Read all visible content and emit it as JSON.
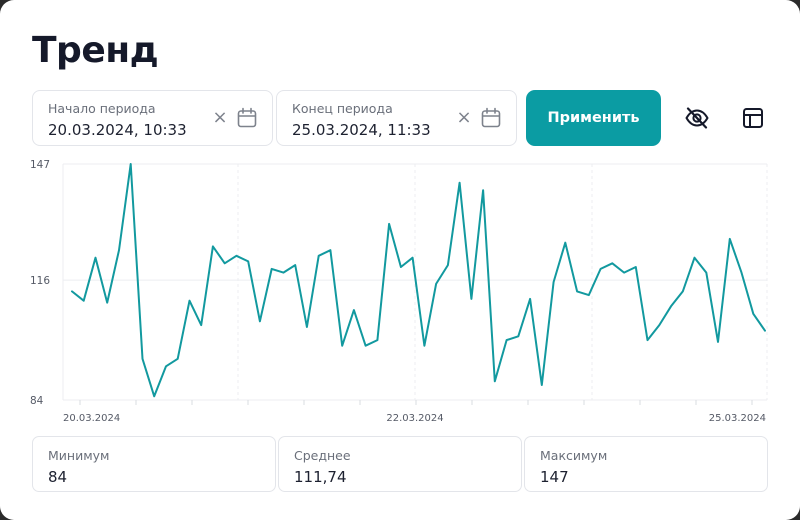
{
  "title": "Тренд",
  "period": {
    "start": {
      "label": "Начало периода",
      "value": "20.03.2024, 10:33"
    },
    "end": {
      "label": "Конец периода",
      "value": "25.03.2024, 11:33"
    },
    "clear_glyph": "×"
  },
  "apply_label": "Применить",
  "icons": {
    "clear": "close-icon",
    "calendar": "calendar-icon",
    "visibility": "eye-off-icon",
    "table": "table-icon"
  },
  "colors": {
    "accent": "#0b9ca3",
    "line": "#12999f"
  },
  "chart_data": {
    "type": "line",
    "ylim": [
      84,
      147
    ],
    "yticks": [
      "84",
      "116",
      "147"
    ],
    "xticks": [
      "20.03.2024",
      "22.03.2024",
      "25.03.2024"
    ],
    "grid": true,
    "series": [
      {
        "values": [
          113,
          110.5,
          122,
          110,
          124,
          147,
          95,
          85,
          93,
          95,
          110.5,
          104,
          125,
          120.5,
          122.5,
          121,
          105,
          119,
          118,
          120,
          103.5,
          122.5,
          124,
          98.5,
          108,
          98.5,
          100,
          131,
          119.5,
          122,
          98.5,
          115,
          120,
          142,
          111,
          140,
          89,
          100,
          101,
          111,
          88,
          115.5,
          126,
          113,
          112,
          119,
          120.5,
          118,
          119.5,
          100,
          104,
          109,
          113,
          122,
          118,
          99.5,
          127,
          118,
          107,
          102.5
        ]
      }
    ]
  },
  "stats": {
    "min": {
      "label": "Минимум",
      "value": "84"
    },
    "avg": {
      "label": "Среднее",
      "value": "111,74"
    },
    "max": {
      "label": "Максимум",
      "value": "147"
    }
  }
}
